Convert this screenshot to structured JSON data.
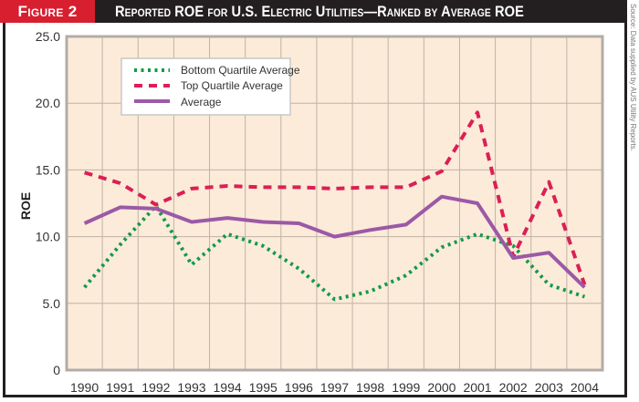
{
  "header": {
    "figure_label": "Figure 2",
    "title": "Reported ROE for U.S. Electric Utilities—Ranked by Average ROE",
    "source": "Source: Data supplied by AUS Utility Reports."
  },
  "colors": {
    "title_bar": "#231f20",
    "figure_label_bg": "#d71f30",
    "plot_bg": "#fcebd9",
    "grid": "#bfb3a6",
    "bottom_quartile": "#119a4a",
    "top_quartile": "#dc1f55",
    "average": "#9b59a6"
  },
  "chart_data": {
    "type": "line",
    "title": "Reported ROE for U.S. Electric Utilities—Ranked by Average ROE",
    "xlabel": "",
    "ylabel": "ROE",
    "ylim": [
      0,
      25
    ],
    "yticks": [
      "0",
      "5.0",
      "10.0",
      "15.0",
      "20.0",
      "25.0"
    ],
    "ytick_values": [
      0,
      5,
      10,
      15,
      20,
      25
    ],
    "grid": true,
    "legend_position": "top-left",
    "categories": [
      "1990",
      "1991",
      "1992",
      "1993",
      "1994",
      "1995",
      "1996",
      "1997",
      "1998",
      "1999",
      "2000",
      "2001",
      "2002",
      "2003",
      "2004"
    ],
    "series": [
      {
        "name": "Bottom Quartile Average",
        "style": "dotted",
        "color_key": "bottom_quartile",
        "values": [
          6.2,
          9.4,
          12.3,
          7.9,
          10.2,
          9.3,
          7.6,
          5.3,
          5.9,
          7.1,
          9.2,
          10.2,
          9.3,
          6.4,
          5.5
        ]
      },
      {
        "name": "Top Quartile Average",
        "style": "dashed",
        "color_key": "top_quartile",
        "values": [
          14.8,
          14.0,
          12.4,
          13.6,
          13.8,
          13.7,
          13.7,
          13.6,
          13.7,
          13.7,
          14.9,
          19.3,
          8.5,
          14.1,
          6.4
        ]
      },
      {
        "name": "Average",
        "style": "solid",
        "color_key": "average",
        "values": [
          11.0,
          12.2,
          12.1,
          11.1,
          11.4,
          11.1,
          11.0,
          10.0,
          10.5,
          10.9,
          13.0,
          12.5,
          8.4,
          8.8,
          6.2
        ]
      }
    ]
  }
}
